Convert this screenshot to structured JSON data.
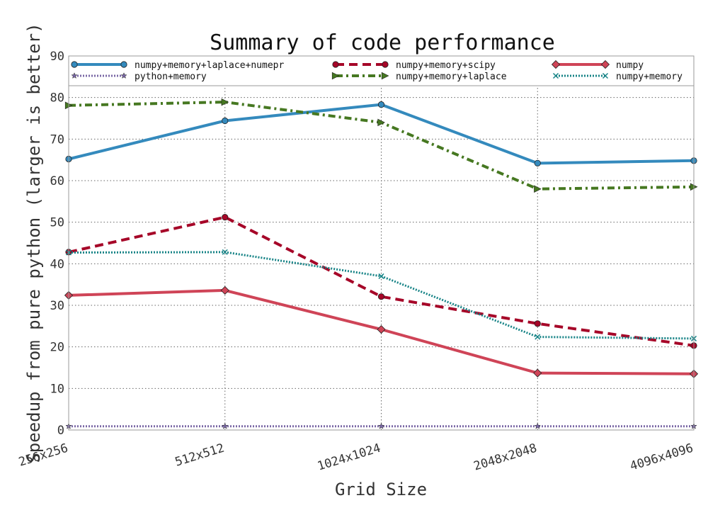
{
  "chart_data": {
    "type": "line",
    "title": "Summary of code performance",
    "xlabel": "Grid Size",
    "ylabel": "Speedup from pure python (larger is better)",
    "categories": [
      "256x256",
      "512x512",
      "1024x1024",
      "2048x2048",
      "4096x4096"
    ],
    "x": [
      256,
      512,
      1024,
      2048,
      4096
    ],
    "ylim": [
      0,
      90
    ],
    "yticks": [
      0,
      10,
      20,
      30,
      40,
      50,
      60,
      70,
      80,
      90
    ],
    "grid": true,
    "legend_position": "top",
    "series": [
      {
        "name": "numpy+memory+laplace+numepr",
        "values": [
          65.2,
          74.4,
          78.3,
          64.2,
          64.8
        ],
        "color": "#348abd",
        "style": "solid",
        "marker": "circle"
      },
      {
        "name": "numpy+memory+scipy",
        "values": [
          42.8,
          51.2,
          32.1,
          25.6,
          20.3
        ],
        "color": "#a60628",
        "style": "dashed",
        "marker": "circle"
      },
      {
        "name": "numpy",
        "values": [
          32.4,
          33.6,
          24.2,
          13.7,
          13.5
        ],
        "color": "#cf4457",
        "style": "solid",
        "marker": "diamond"
      },
      {
        "name": "python+memory",
        "values": [
          0.9,
          0.9,
          0.9,
          0.9,
          0.9
        ],
        "color": "#7a68a6",
        "style": "dotted",
        "marker": "star"
      },
      {
        "name": "numpy+memory+laplace",
        "values": [
          78.1,
          78.9,
          74.0,
          58.0,
          58.5
        ],
        "color": "#467821",
        "style": "dashdot",
        "marker": "triangle-right"
      },
      {
        "name": "numpy+memory",
        "values": [
          42.7,
          42.8,
          37.0,
          22.4,
          22.0
        ],
        "color": "#188487",
        "style": "dotted",
        "marker": "x"
      }
    ]
  }
}
